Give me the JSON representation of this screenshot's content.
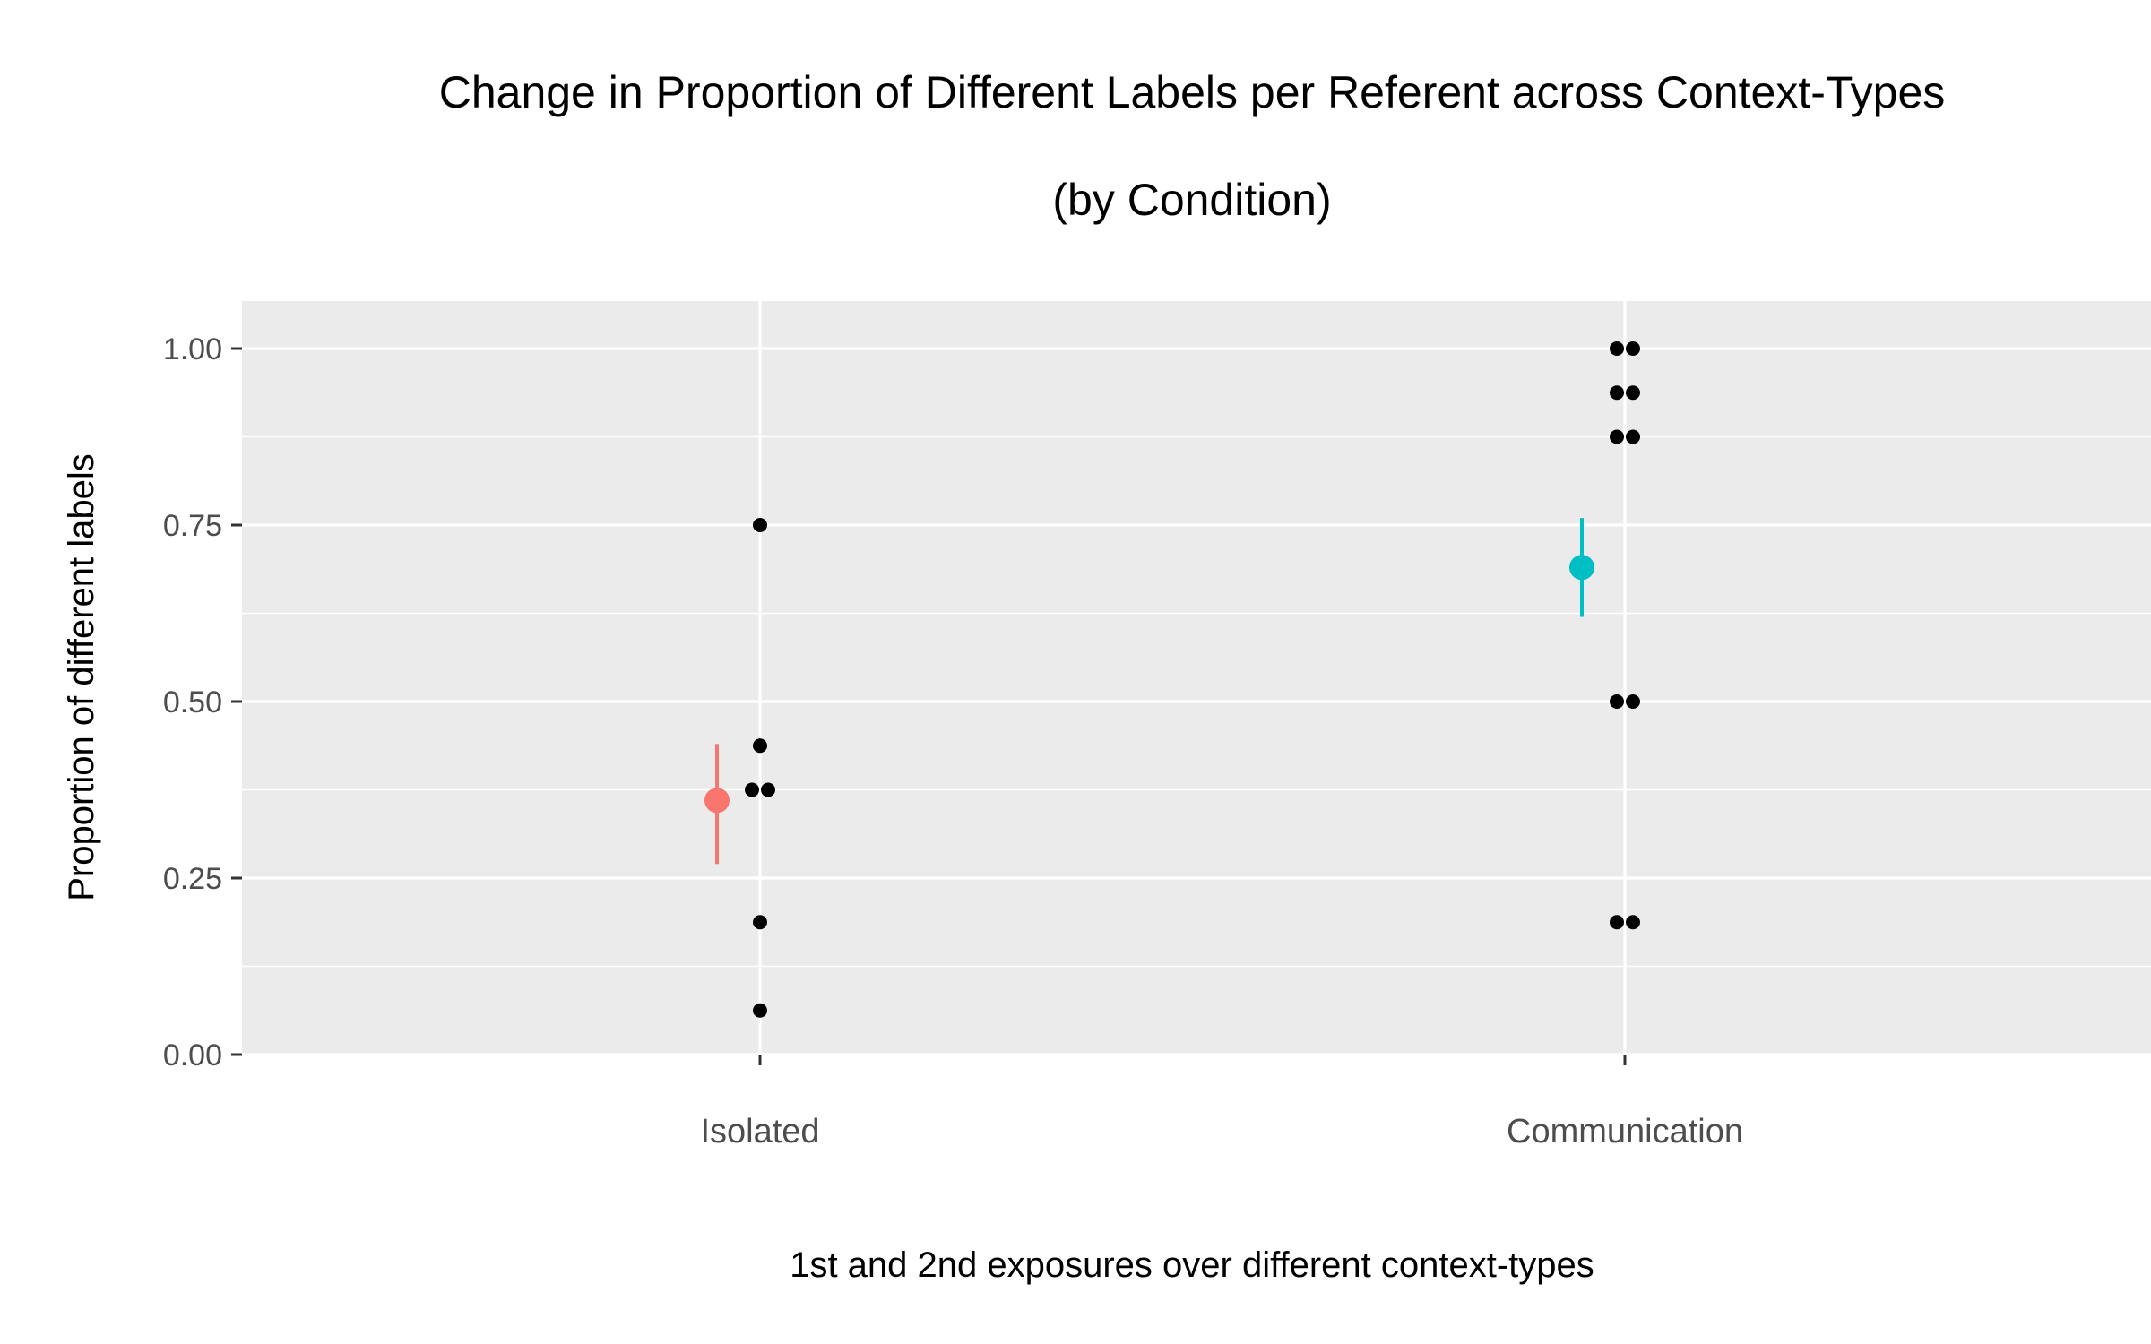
{
  "chart_data": {
    "type": "scatter",
    "title": "Change in Proportion of Different Labels per Referent across Context-Types",
    "subtitle": "(by Condition)",
    "xlabel": "1st and 2nd exposures over different context-types",
    "ylabel": "Proportion of different labels",
    "categories": [
      "Isolated",
      "Communication"
    ],
    "ylim": [
      0,
      1
    ],
    "y_ticks": [
      "0.00",
      "0.25",
      "0.50",
      "0.75",
      "1.00"
    ],
    "y_tick_values": [
      0,
      0.25,
      0.5,
      0.75,
      1.0
    ],
    "grid": true,
    "background_color": "#ebebeb",
    "series": [
      {
        "category": "Isolated",
        "points": [
          0.75,
          0.4375,
          0.375,
          0.375,
          0.1875,
          0.0625
        ],
        "mean": 0.36,
        "error": [
          0.27,
          0.44
        ],
        "color": "#f8766d"
      },
      {
        "category": "Communication",
        "points": [
          1.0,
          1.0,
          0.9375,
          0.9375,
          0.875,
          0.875,
          0.5,
          0.5,
          0.1875,
          0.1875
        ],
        "mean": 0.69,
        "error": [
          0.62,
          0.76
        ],
        "color": "#00bfc4"
      }
    ],
    "point_color": "#000000"
  }
}
